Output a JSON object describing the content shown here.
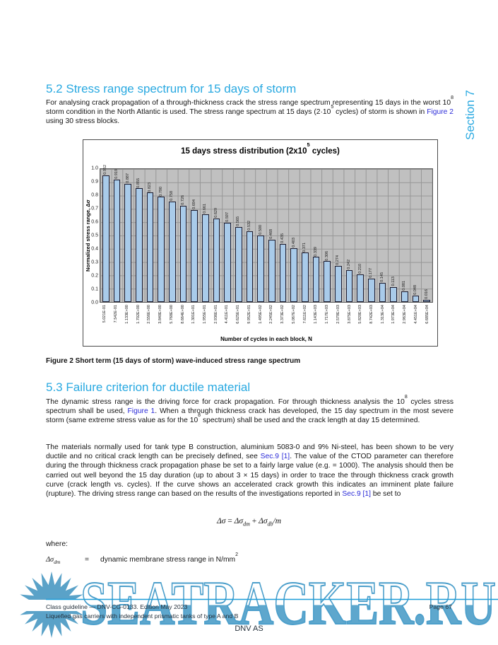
{
  "page": {
    "side_section_label": "Section 7",
    "accent_color": "#29a9e1",
    "link_color": "#2b2bd8"
  },
  "section_5_2": {
    "heading": "5.2 Stress range spectrum for 15 days of storm",
    "paragraph": [
      {
        "t": "For analysing crack propagation of a through-thickness crack the stress range spectrum representing 15 days in the worst 10"
      },
      {
        "sup": "8"
      },
      {
        "t": " storm condition in the North Atlantic is used. The stress range spectrum at 15 days (2·10"
      },
      {
        "sup": "5"
      },
      {
        "t": " cycles) of storm is shown in "
      },
      {
        "link": "Figure 2"
      },
      {
        "t": " using 30 stress blocks."
      }
    ]
  },
  "figure": {
    "caption": "Figure 2 Short term (15 days of storm) wave-induced stress range spectrum"
  },
  "chart_data": {
    "type": "bar",
    "title": "15 days stress distribution (2x10^5 cycles)",
    "title_segments": [
      {
        "t": "15 days stress distribution (2x10"
      },
      {
        "sup": "5"
      },
      {
        "t": " cycles)"
      }
    ],
    "ylabel": "Normalized stress range, Δσ",
    "xlabel": "Number of cycles in each block, N",
    "ylim": [
      0,
      1.0
    ],
    "yticks": [
      "1.0",
      "0.9",
      "0.8",
      "0.7",
      "0.6",
      "0.5",
      "0.4",
      "0.3",
      "0.2",
      "0.1",
      "0.0"
    ],
    "grid": true,
    "legend": "none",
    "plot_bg_color": "#c0c0c0",
    "bar_color": "#a9cbea",
    "categories": [
      "5.021E-01",
      "7.542E-01",
      "1.133E+00",
      "1.702E+00",
      "2.556E+00",
      "3.840E+00",
      "5.768E+00",
      "8.664E+00",
      "1.301E+01",
      "1.955E+01",
      "2.936E+01",
      "4.411E+01",
      "6.625E+01",
      "9.952E+01",
      "1.495E+02",
      "2.245E+02",
      "3.373E+02",
      "5.067E+02",
      "7.611E+02",
      "1.143E+03",
      "1.717E+03",
      "2.579E+03",
      "3.875E+03",
      "5.820E+03",
      "8.742E+03",
      "1.313E+04",
      "1.973E+04",
      "2.963E+04",
      "4.451E+04",
      "6.685E+04"
    ],
    "values": [
      0.952,
      0.919,
      0.887,
      0.855,
      0.823,
      0.79,
      0.758,
      0.726,
      0.694,
      0.661,
      0.629,
      0.597,
      0.565,
      0.532,
      0.5,
      0.468,
      0.435,
      0.403,
      0.371,
      0.339,
      0.306,
      0.274,
      0.242,
      0.21,
      0.177,
      0.145,
      0.113,
      0.081,
      0.048,
      0.016
    ],
    "value_labels": [
      "0.952",
      "0.919",
      "0.887",
      "0.855",
      "0.823",
      "0.790",
      "0.758",
      "0.726",
      "0.694",
      "0.661",
      "0.629",
      "0.597",
      "0.565",
      "0.532",
      "0.500",
      "0.468",
      "0.435",
      "0.403",
      "0.371",
      "0.339",
      "0.306",
      "0.274",
      "0.242",
      "0.210",
      "0.177",
      "0.145",
      "0.113",
      "0.081",
      "0.048",
      "0.016"
    ]
  },
  "section_5_3": {
    "heading": "5.3 Failure criterion for ductile material",
    "paragraph1": [
      {
        "t": "The dynamic stress range is the driving force for crack propagation. For through thickness analysis the 10"
      },
      {
        "sup": "8"
      },
      {
        "t": " cycles stress spectrum shall be used, "
      },
      {
        "link": "Figure 1"
      },
      {
        "t": ". When a through thickness crack has developed, the 15 day spectrum in the most severe storm (same extreme stress value as for the 10"
      },
      {
        "sup": "8"
      },
      {
        "t": " spectrum) shall be used and the crack length at day 15 determined."
      }
    ],
    "paragraph2": [
      {
        "t": "The materials normally used for tank type B construction, aluminium 5083-0 and 9% Ni-steel, has been shown to be very ductile and no critical crack length can be precisely defined, see "
      },
      {
        "link": "Sec.9 [1]"
      },
      {
        "t": ". The value of the CTOD parameter can therefore during the through thickness crack propagation phase be set to a fairly large value (e.g. = 1000). The analysis should then be carried out well beyond the 15 day duration (up to about 3 × 15 days) in order to trace the through thickness crack growth curve (crack length vs. cycles). If the curve shows an accelerated crack growth this indicates an imminent plate failure (rupture). The driving stress range can based on the results of the investigations reported in "
      },
      {
        "link": "Sec.9 [1]"
      },
      {
        "t": " be set to"
      }
    ],
    "formula_segments": [
      {
        "i": "Δσ"
      },
      {
        "t": " = "
      },
      {
        "i": "Δσ"
      },
      {
        "sub": "dm"
      },
      {
        "t": " + "
      },
      {
        "i": "Δσ"
      },
      {
        "sub": "db"
      },
      {
        "i": "/m"
      }
    ],
    "where_label": "where:",
    "definition": {
      "term_base": "Δσ",
      "term_sub": "dm",
      "eq": "=",
      "text_segments": [
        {
          "t": "dynamic membrane stress range in N/mm"
        },
        {
          "sup": "2"
        }
      ]
    }
  },
  "watermark": {
    "text": "SEATRACKER.RU",
    "outline_color": "#4c9fcb",
    "fill_color": "#5ea7cd",
    "sun_color": "#5aa2c8",
    "line_color": "#1b9cd8"
  },
  "footer": {
    "line1_left": "Class guideline — DNV-CG-0133. Edition May 2023",
    "line1_right": "Page 67",
    "line2": "Liquefied gas carriers with independent prismatic tanks of type A and B",
    "company": "DNV AS"
  }
}
